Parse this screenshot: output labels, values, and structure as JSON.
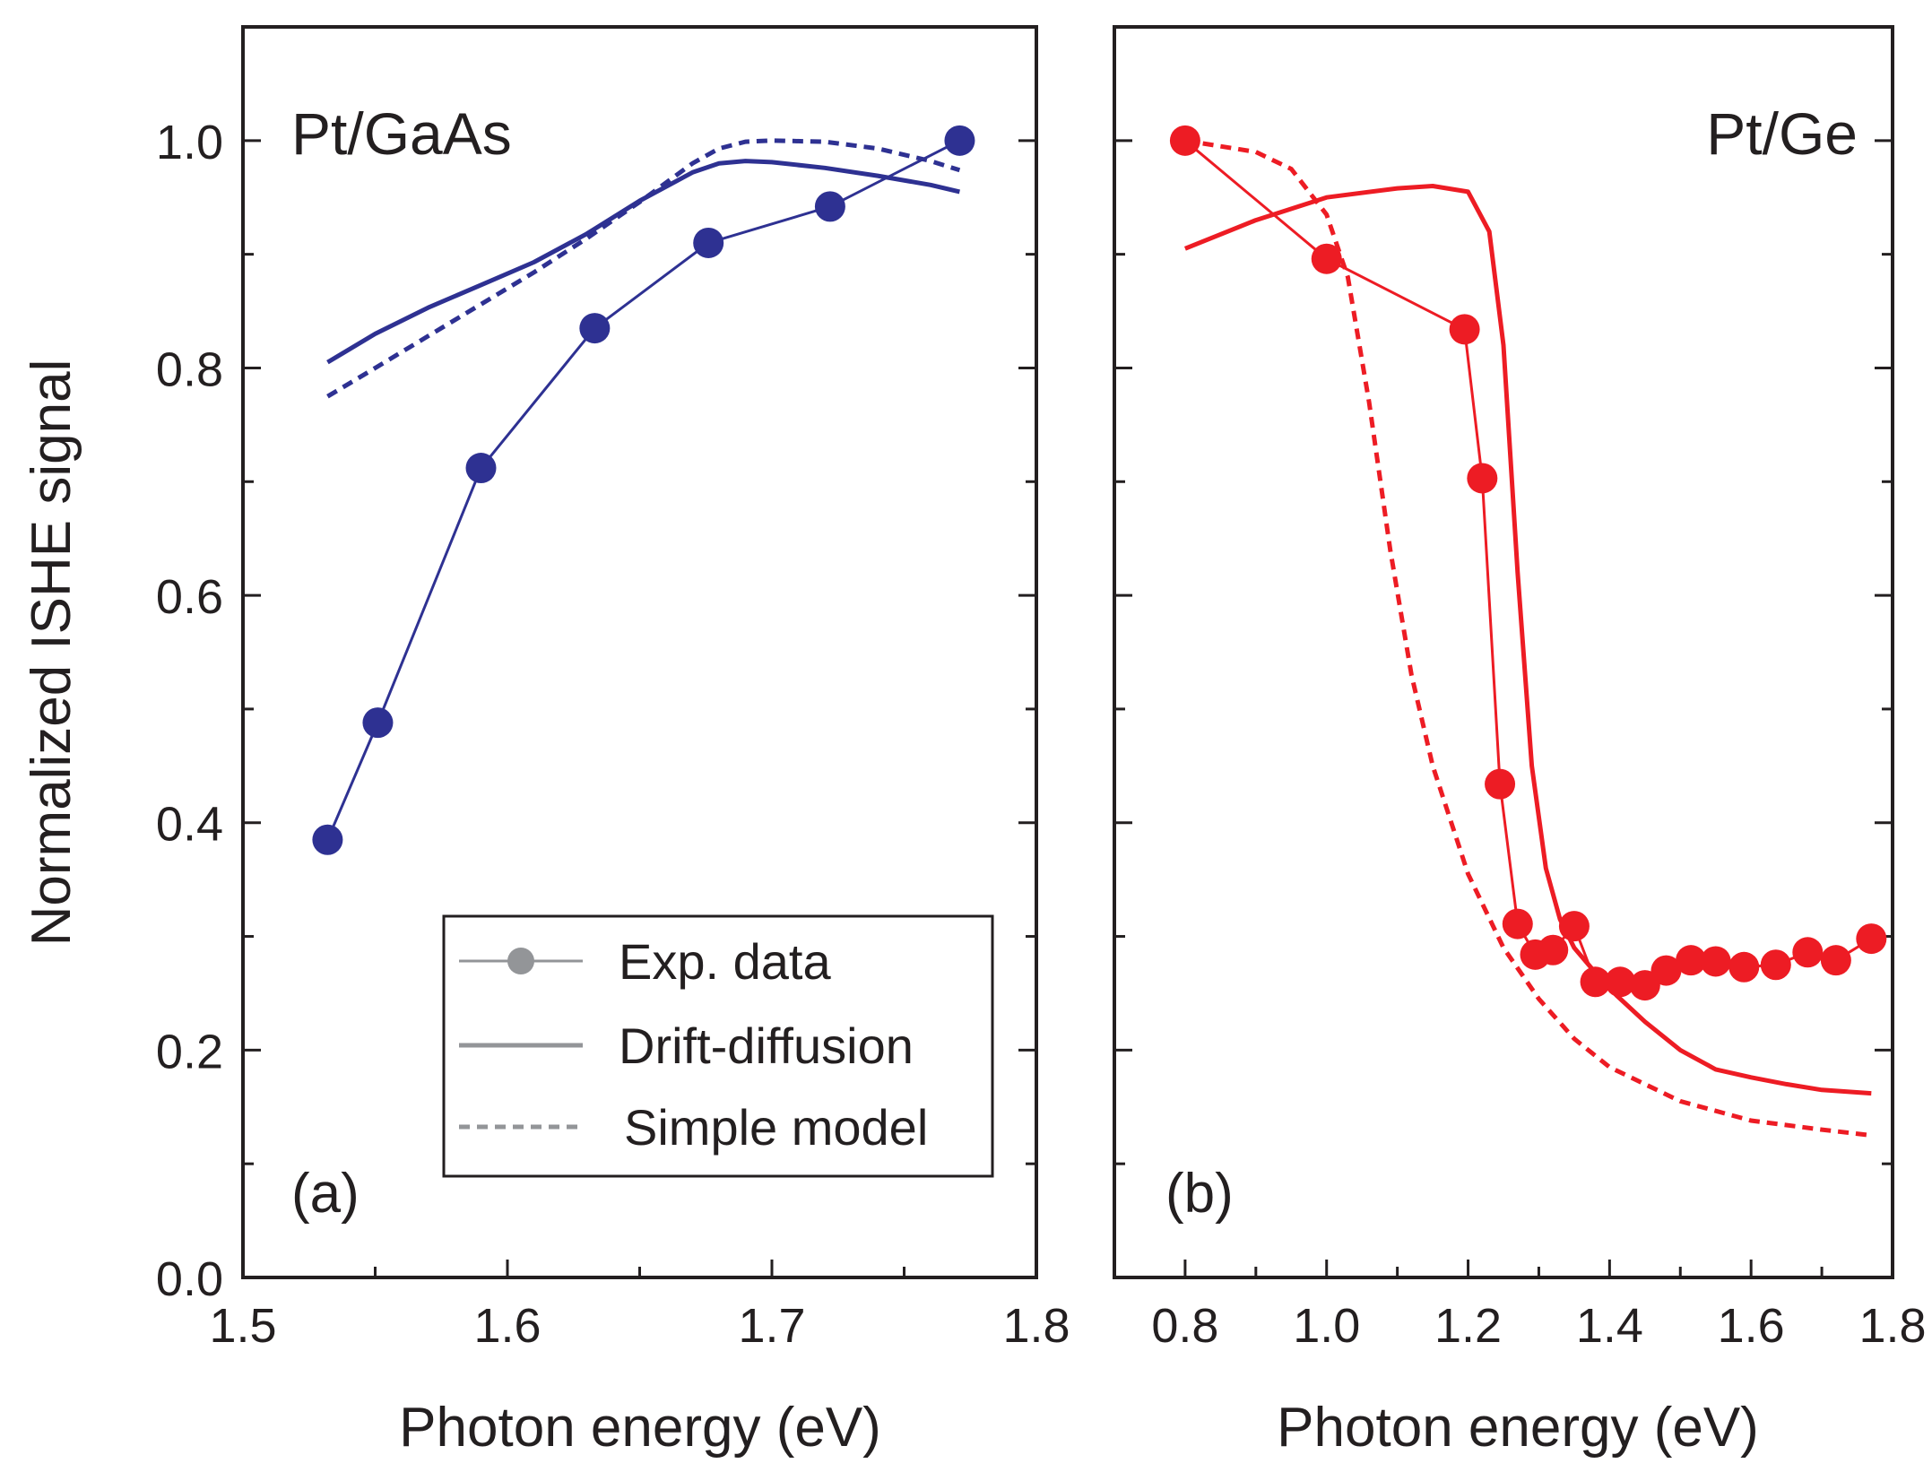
{
  "figure": {
    "ylabel": "Normalized ISHE signal",
    "colors": {
      "axis": "#231f20",
      "panel_a": "#2e3192",
      "panel_b": "#ed1c24",
      "legend_marker": "#939598"
    },
    "legend": {
      "entries": [
        {
          "label": "Exp. data",
          "style": "marker-line"
        },
        {
          "label": "Drift-diffusion",
          "style": "solid"
        },
        {
          "label": "Simple model",
          "style": "dashed"
        }
      ]
    }
  },
  "chart_data": [
    {
      "type": "line",
      "panel_label": "(a)",
      "title": "Pt/GaAs",
      "xlabel": "Photon energy (eV)",
      "ylabel": "Normalized ISHE signal",
      "xlim": [
        1.5,
        1.8
      ],
      "ylim": [
        0.0,
        1.1
      ],
      "xticks": [
        "1.5",
        "1.6",
        "1.7",
        "1.8"
      ],
      "yticks": [
        "0.0",
        "0.2",
        "0.4",
        "0.6",
        "0.8",
        "1.0"
      ],
      "series": [
        {
          "name": "Exp. data",
          "x": [
            1.532,
            1.551,
            1.59,
            1.633,
            1.676,
            1.722,
            1.771
          ],
          "y": [
            0.385,
            0.488,
            0.712,
            0.835,
            0.91,
            0.942,
            1.0
          ]
        },
        {
          "name": "Drift-diffusion",
          "x": [
            1.532,
            1.55,
            1.57,
            1.59,
            1.61,
            1.63,
            1.65,
            1.67,
            1.68,
            1.69,
            1.7,
            1.72,
            1.74,
            1.76,
            1.771
          ],
          "y": [
            0.805,
            0.83,
            0.853,
            0.873,
            0.893,
            0.918,
            0.947,
            0.972,
            0.98,
            0.982,
            0.981,
            0.976,
            0.969,
            0.961,
            0.955
          ]
        },
        {
          "name": "Simple model",
          "x": [
            1.532,
            1.55,
            1.57,
            1.59,
            1.61,
            1.63,
            1.65,
            1.67,
            1.68,
            1.69,
            1.7,
            1.72,
            1.74,
            1.76,
            1.771
          ],
          "y": [
            0.775,
            0.8,
            0.828,
            0.856,
            0.884,
            0.914,
            0.946,
            0.98,
            0.993,
            0.999,
            1.0,
            0.999,
            0.993,
            0.982,
            0.974
          ]
        }
      ]
    },
    {
      "type": "line",
      "panel_label": "(b)",
      "title": "Pt/Ge",
      "xlabel": "Photon energy (eV)",
      "ylabel": "Normalized ISHE signal",
      "xlim": [
        0.7,
        1.8
      ],
      "ylim": [
        0.0,
        1.1
      ],
      "xticks": [
        "0.8",
        "1.0",
        "1.2",
        "1.4",
        "1.6",
        "1.8"
      ],
      "yticks": [],
      "series": [
        {
          "name": "Exp. data",
          "x": [
            0.8,
            1.0,
            1.195,
            1.22,
            1.245,
            1.27,
            1.295,
            1.32,
            1.35,
            1.38,
            1.415,
            1.45,
            1.48,
            1.515,
            1.55,
            1.59,
            1.635,
            1.68,
            1.72,
            1.77
          ],
          "y": [
            1.0,
            0.896,
            0.834,
            0.703,
            0.434,
            0.311,
            0.284,
            0.288,
            0.309,
            0.26,
            0.26,
            0.257,
            0.27,
            0.279,
            0.278,
            0.273,
            0.275,
            0.286,
            0.279,
            0.298
          ]
        },
        {
          "name": "Drift-diffusion",
          "x": [
            0.8,
            0.9,
            1.0,
            1.1,
            1.15,
            1.2,
            1.23,
            1.25,
            1.27,
            1.29,
            1.31,
            1.33,
            1.35,
            1.38,
            1.41,
            1.45,
            1.5,
            1.55,
            1.6,
            1.65,
            1.7,
            1.77
          ],
          "y": [
            0.905,
            0.93,
            0.95,
            0.958,
            0.96,
            0.955,
            0.92,
            0.82,
            0.62,
            0.45,
            0.36,
            0.315,
            0.29,
            0.268,
            0.248,
            0.225,
            0.2,
            0.183,
            0.176,
            0.17,
            0.165,
            0.162
          ]
        },
        {
          "name": "Simple model",
          "x": [
            0.8,
            0.9,
            0.95,
            1.0,
            1.03,
            1.06,
            1.09,
            1.12,
            1.15,
            1.2,
            1.25,
            1.3,
            1.35,
            1.4,
            1.5,
            1.6,
            1.7,
            1.77
          ],
          "y": [
            1.0,
            0.99,
            0.975,
            0.935,
            0.88,
            0.77,
            0.64,
            0.53,
            0.45,
            0.355,
            0.29,
            0.245,
            0.21,
            0.185,
            0.155,
            0.138,
            0.13,
            0.125
          ]
        }
      ]
    }
  ]
}
